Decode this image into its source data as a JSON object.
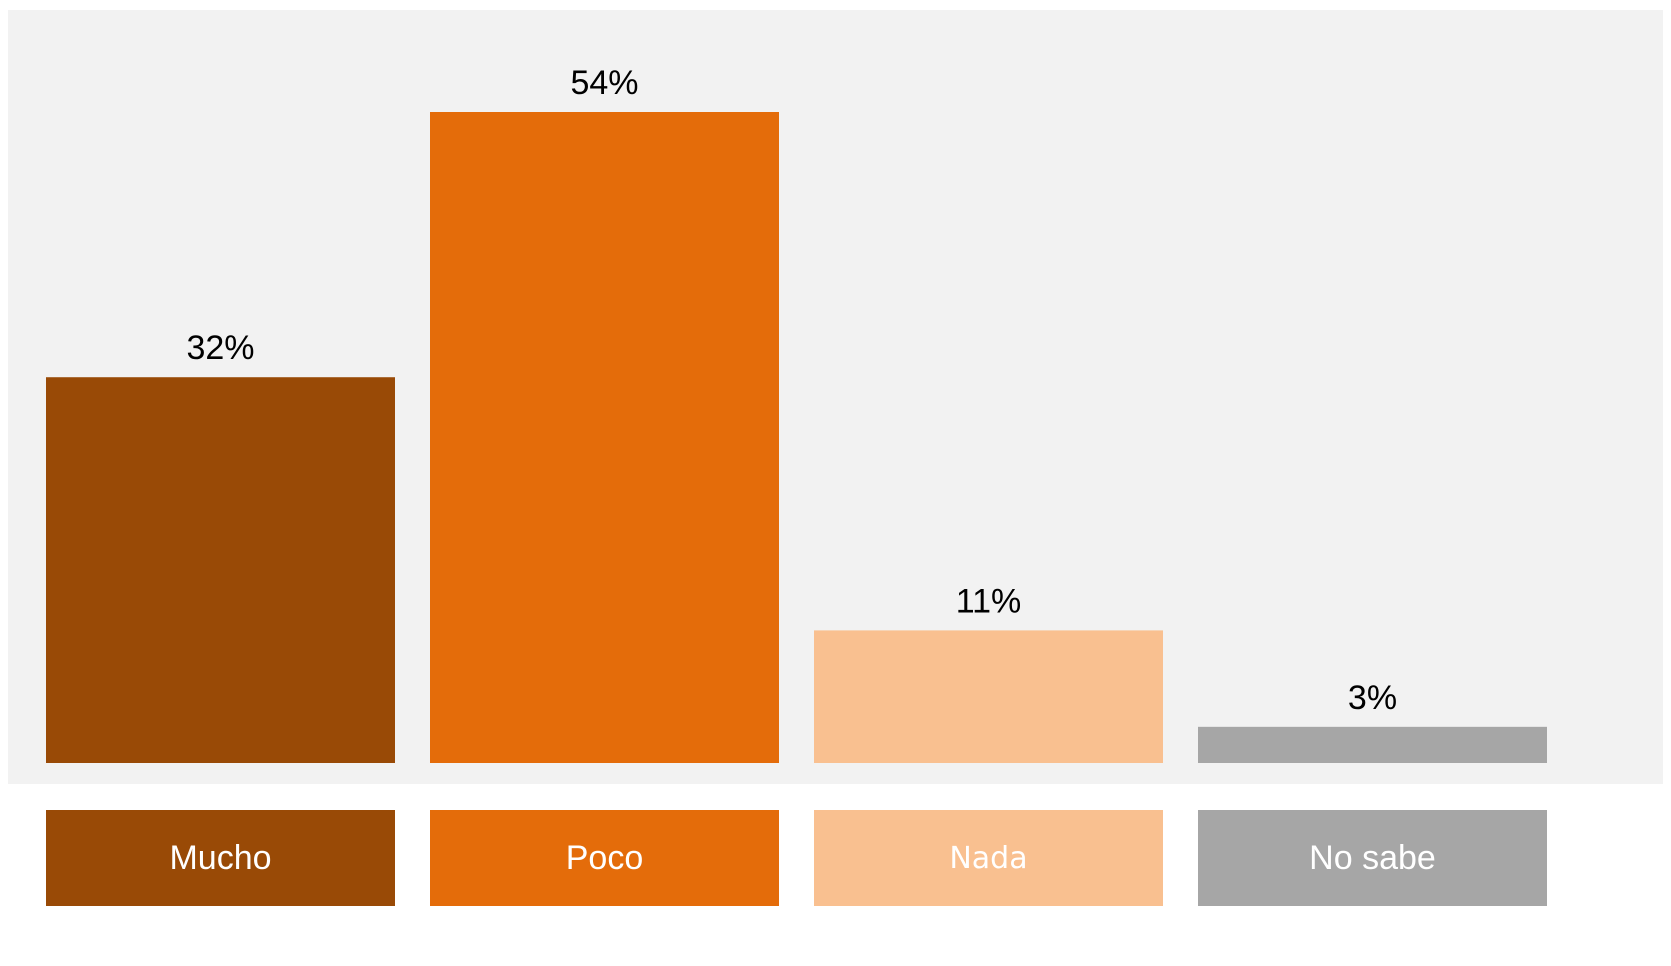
{
  "chart_data": {
    "type": "bar",
    "categories": [
      "Mucho",
      "Poco",
      "Nada",
      "No sabe"
    ],
    "values": [
      32,
      54,
      11,
      3
    ],
    "value_labels": [
      "32%",
      "54%",
      "11%",
      "3%"
    ],
    "colors": [
      "#994a06",
      "#e46c0a",
      "#f9c090",
      "#a6a6a6"
    ],
    "title": "",
    "xlabel": "",
    "ylabel": "",
    "ylim": [
      0,
      54
    ],
    "grid": false,
    "legend": "bottom"
  },
  "legend": {
    "items": [
      {
        "label": "Mucho",
        "color": "#994a06"
      },
      {
        "label": "Poco",
        "color": "#e46c0a"
      },
      {
        "label": "Nada",
        "color": "#f9c090"
      },
      {
        "label": "No sabe",
        "color": "#a6a6a6"
      }
    ]
  }
}
